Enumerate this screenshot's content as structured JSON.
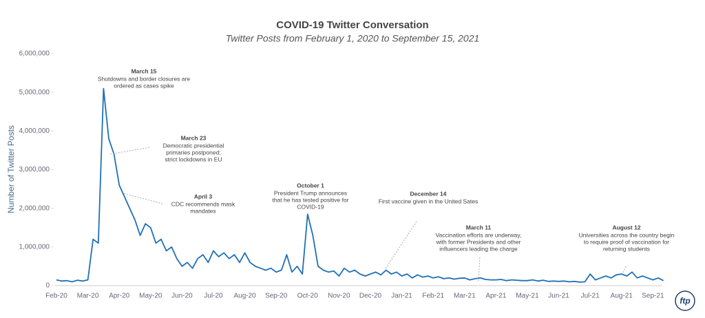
{
  "chart_data": {
    "type": "line",
    "title": "COVID-19 Twitter Conversation",
    "subtitle": "Twitter Posts from February 1, 2020 to September 15, 2021",
    "y_label": "Number of Twitter Posts",
    "logo": "ftp",
    "color": "#1f6fb5",
    "categories": [
      "Feb-20",
      null,
      null,
      null,
      null,
      null,
      "Mar-20",
      null,
      null,
      null,
      null,
      null,
      "Apr-20",
      null,
      null,
      null,
      null,
      null,
      "May-20",
      null,
      null,
      null,
      null,
      null,
      "Jun-20",
      null,
      null,
      null,
      null,
      null,
      "Jul-20",
      null,
      null,
      null,
      null,
      null,
      "Aug-20",
      null,
      null,
      null,
      null,
      null,
      "Sep-20",
      null,
      null,
      null,
      null,
      null,
      "Oct-20",
      null,
      null,
      null,
      null,
      null,
      "Nov-20",
      null,
      null,
      null,
      null,
      null,
      "Dec-20",
      null,
      null,
      null,
      null,
      null,
      "Jan-21",
      null,
      null,
      null,
      null,
      null,
      "Feb-21",
      null,
      null,
      null,
      null,
      null,
      "Mar-21",
      null,
      null,
      null,
      null,
      null,
      "Apr-21",
      null,
      null,
      null,
      null,
      null,
      "May-21",
      null,
      null,
      null,
      null,
      null,
      "Jun-21",
      null,
      null,
      null,
      null,
      null,
      "Jul-21",
      null,
      null,
      null,
      null,
      null,
      "Aug-21",
      null,
      null,
      null,
      null,
      null,
      "Sep-21",
      null,
      null
    ],
    "values": [
      150000,
      120000,
      130000,
      100000,
      140000,
      120000,
      150000,
      1200000,
      1100000,
      5100000,
      3800000,
      3400000,
      2600000,
      2300000,
      2000000,
      1700000,
      1300000,
      1600000,
      1500000,
      1100000,
      1200000,
      900000,
      1000000,
      700000,
      500000,
      600000,
      450000,
      700000,
      800000,
      600000,
      900000,
      750000,
      850000,
      700000,
      800000,
      600000,
      850000,
      600000,
      500000,
      450000,
      400000,
      450000,
      350000,
      400000,
      800000,
      350000,
      500000,
      300000,
      1850000,
      1300000,
      500000,
      400000,
      350000,
      380000,
      250000,
      450000,
      350000,
      400000,
      300000,
      250000,
      300000,
      350000,
      280000,
      400000,
      300000,
      350000,
      250000,
      300000,
      200000,
      280000,
      220000,
      250000,
      200000,
      230000,
      180000,
      200000,
      170000,
      190000,
      200000,
      150000,
      180000,
      200000,
      160000,
      150000,
      150000,
      160000,
      130000,
      150000,
      140000,
      130000,
      130000,
      150000,
      120000,
      140000,
      110000,
      120000,
      110000,
      120000,
      100000,
      110000,
      90000,
      100000,
      300000,
      150000,
      200000,
      250000,
      200000,
      280000,
      300000,
      250000,
      350000,
      200000,
      250000,
      200000,
      150000,
      200000,
      130000
    ],
    "ylim": [
      0,
      6000000
    ],
    "yticks": [
      0,
      {
        "value": 1000000,
        "label": "1,000,000"
      },
      {
        "value": 2000000,
        "label": "2,000,000"
      },
      {
        "value": 3000000,
        "label": "3,000,000"
      },
      {
        "value": 4000000,
        "label": "4,000,000"
      },
      {
        "value": 5000000,
        "label": "5,000,000"
      },
      {
        "value": 6000000,
        "label": "6,000,000"
      }
    ],
    "annotations": [
      {
        "title": "March 15",
        "lines": [
          "Shutdowns and border closures are",
          "ordered as cases spike"
        ]
      },
      {
        "title": "March 23",
        "lines": [
          "Democratic presidential",
          "primaries postponed;",
          "strict lockdowns in EU"
        ]
      },
      {
        "title": "April 3",
        "lines": [
          "CDC recommends mask",
          "mandates"
        ]
      },
      {
        "title": "October 1",
        "lines": [
          "President Trump announces",
          "that he has tested positive for",
          "COVID-19"
        ]
      },
      {
        "title": "December 14",
        "lines": [
          "First vaccine given in the United Sates"
        ]
      },
      {
        "title": "March 11",
        "lines": [
          "Vaccination efforts are underway,",
          "with former Presidents and other",
          "influencers leading the charge"
        ]
      },
      {
        "title": "August 12",
        "lines": [
          "Universities across the country begin",
          "to require proof of vaccination for",
          "returning students"
        ]
      }
    ]
  }
}
